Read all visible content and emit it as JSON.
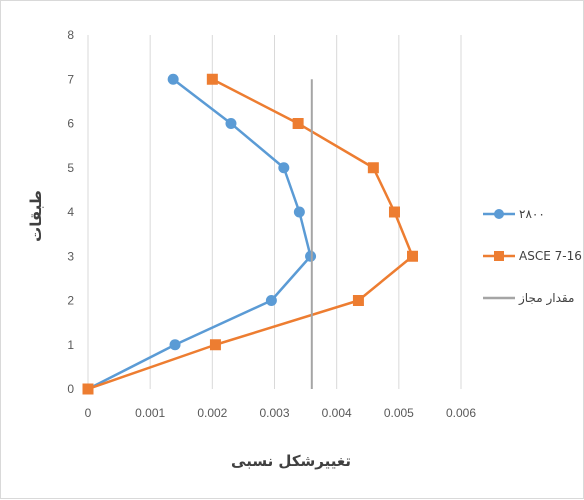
{
  "chart_data": {
    "type": "line",
    "xlabel": "تغییرشکل نسبی",
    "ylabel": "طبقات",
    "xlim": [
      0,
      0.006
    ],
    "ylim": [
      0,
      8
    ],
    "x_ticks": [
      "0",
      "0.001",
      "0.002",
      "0.003",
      "0.004",
      "0.005",
      "0.006"
    ],
    "y_ticks": [
      "0",
      "1",
      "2",
      "3",
      "4",
      "5",
      "6",
      "7",
      "8"
    ],
    "grid": "vertical",
    "legend_position": "right",
    "series": [
      {
        "name": "۲۸۰۰",
        "color": "#5b9bd5",
        "marker": "circle",
        "points": [
          {
            "x": 0,
            "y": 0
          },
          {
            "x": 0.0014,
            "y": 1
          },
          {
            "x": 0.00295,
            "y": 2
          },
          {
            "x": 0.00358,
            "y": 3
          },
          {
            "x": 0.0034,
            "y": 4
          },
          {
            "x": 0.00315,
            "y": 5
          },
          {
            "x": 0.0023,
            "y": 6
          },
          {
            "x": 0.00137,
            "y": 7
          }
        ]
      },
      {
        "name": "ASCE 7-16",
        "color": "#ed7d31",
        "marker": "square",
        "points": [
          {
            "x": 0,
            "y": 0
          },
          {
            "x": 0.00205,
            "y": 1
          },
          {
            "x": 0.00435,
            "y": 2
          },
          {
            "x": 0.00522,
            "y": 3
          },
          {
            "x": 0.00493,
            "y": 4
          },
          {
            "x": 0.00459,
            "y": 5
          },
          {
            "x": 0.00338,
            "y": 6
          },
          {
            "x": 0.002,
            "y": 7
          }
        ]
      },
      {
        "name": "مقدار مجاز",
        "color": "#a5a5a5",
        "marker": "none",
        "points": [
          {
            "x": 0.0036,
            "y": 0
          },
          {
            "x": 0.0036,
            "y": 7
          }
        ]
      }
    ]
  }
}
